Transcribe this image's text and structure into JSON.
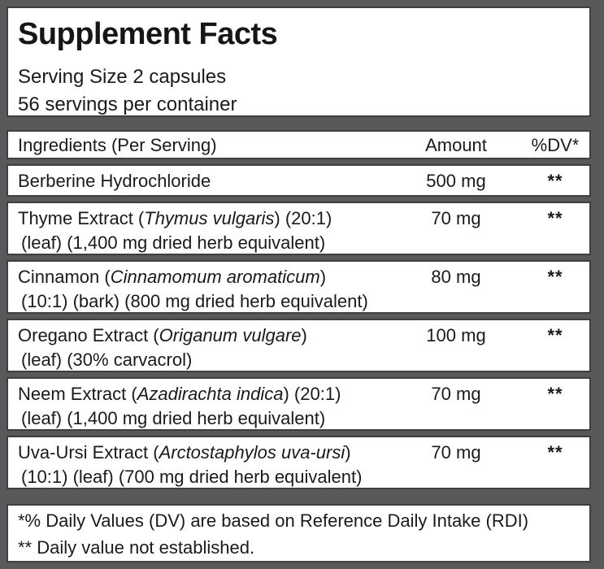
{
  "label": {
    "title": "Supplement Facts",
    "serving_size": "Serving Size 2 capsules",
    "servings_per_container": "56 servings per container",
    "columns": {
      "ingredients": "Ingredients (Per Serving)",
      "amount": "Amount",
      "dv": "%DV*"
    },
    "rows": [
      {
        "name_pre": "Berberine Hydrochloride",
        "latin": "",
        "name_post": "",
        "line2": "",
        "amount": "500 mg",
        "dv": "**"
      },
      {
        "name_pre": "Thyme Extract (",
        "latin": "Thymus vulgaris",
        "name_post": ") (20:1)",
        "line2": "(leaf) (1,400 mg dried herb equivalent)",
        "amount": "70 mg",
        "dv": "**"
      },
      {
        "name_pre": "Cinnamon (",
        "latin": "Cinnamomum aromaticum",
        "name_post": ")",
        "line2": "(10:1) (bark) (800 mg dried herb equivalent)",
        "amount": "80 mg",
        "dv": "**"
      },
      {
        "name_pre": "Oregano Extract (",
        "latin": "Origanum vulgare",
        "name_post": ")",
        "line2": "(leaf) (30% carvacrol)",
        "amount": "100 mg",
        "dv": "**"
      },
      {
        "name_pre": "Neem Extract (",
        "latin": "Azadirachta indica",
        "name_post": ") (20:1)",
        "line2": "(leaf) (1,400 mg dried herb equivalent)",
        "amount": "70 mg",
        "dv": "**"
      },
      {
        "name_pre": "Uva-Ursi Extract (",
        "latin": "Arctostaphylos uva-ursi",
        "name_post": ")",
        "line2": "(10:1) (leaf) (700 mg dried herb equivalent)",
        "amount": "70 mg",
        "dv": "**"
      }
    ],
    "footnotes": {
      "dv_note": "*% Daily Values (DV) are based on Reference Daily Intake (RDI)",
      "not_established_note": "** Daily value not established."
    },
    "colors": {
      "frame": "#58595b",
      "box_border": "#3e3f41",
      "text": "#1a1a1a",
      "background": "#ffffff"
    }
  }
}
